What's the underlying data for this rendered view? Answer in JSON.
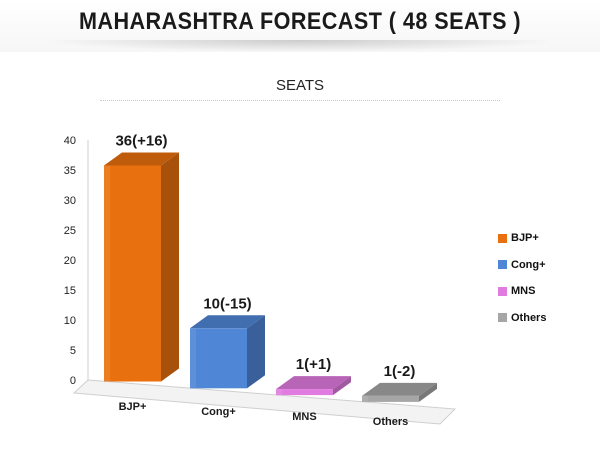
{
  "header": {
    "title": "MAHARASHTRA FORECAST ( 48 SEATS )"
  },
  "chart_data": {
    "type": "bar",
    "title": "SEATS",
    "categories": [
      "BJP+",
      "Cong+",
      "MNS",
      "Others"
    ],
    "values": [
      36,
      10,
      1,
      1
    ],
    "data_labels": [
      "36(+16)",
      "10(-15)",
      "1(+1)",
      "1(-2)"
    ],
    "colors": [
      "#e9700e",
      "#4f86d6",
      "#e07be0",
      "#a6a6a6"
    ],
    "yticks": [
      "0",
      "5",
      "10",
      "15",
      "20",
      "25",
      "30",
      "35",
      "40"
    ],
    "ylim": [
      0,
      40
    ],
    "grid": false,
    "legend_position": "right",
    "legend": [
      "BJP+",
      "Cong+",
      "MNS",
      "Others"
    ],
    "style": "3d-bar"
  }
}
